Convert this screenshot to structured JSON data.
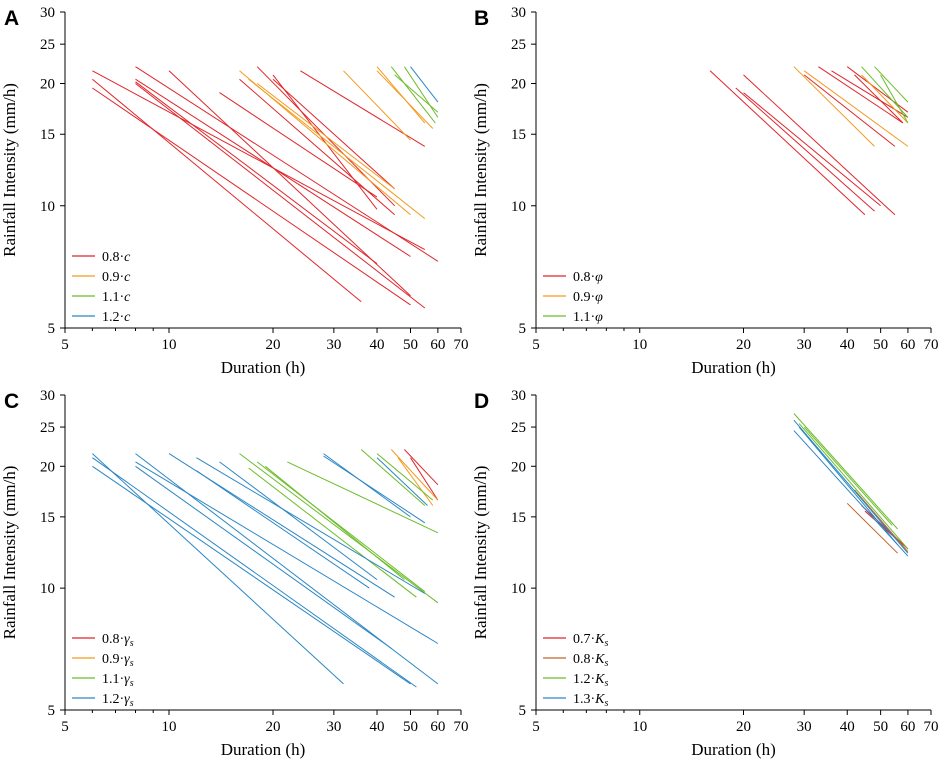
{
  "chart_data": [
    {
      "panel": "A",
      "type": "line",
      "xlabel": "Duration (h)",
      "ylabel": "Rainfall Intensity (mm/h)",
      "xscale": "log",
      "yscale": "log",
      "xlim": [
        5,
        70
      ],
      "ylim": [
        5,
        30
      ],
      "xticks": [
        5,
        10,
        20,
        30,
        40,
        50,
        60,
        70
      ],
      "yticks": [
        5,
        10,
        15,
        20,
        25,
        30
      ],
      "legend_position": "bottom-left",
      "legend": [
        {
          "label": "0.8·c",
          "base": "0.8·",
          "sym": "c",
          "sub": "",
          "color": "#e0262b"
        },
        {
          "label": "0.9·c",
          "base": "0.9·",
          "sym": "c",
          "sub": "",
          "color": "#f39a1e"
        },
        {
          "label": "1.1·c",
          "base": "1.1·",
          "sym": "c",
          "sub": "",
          "color": "#6cbd2b"
        },
        {
          "label": "1.2·c",
          "base": "1.2·",
          "sym": "c",
          "sub": "",
          "color": "#2b87c4"
        }
      ],
      "series": [
        {
          "name": "0.8·c",
          "color": "#e0262b",
          "segments": [
            [
              [
                6,
                21.5
              ],
              [
                55,
                7.8
              ]
            ],
            [
              [
                6,
                20.5
              ],
              [
                36,
                5.8
              ]
            ],
            [
              [
                6,
                19.5
              ],
              [
                50,
                5.7
              ]
            ],
            [
              [
                8,
                22
              ],
              [
                60,
                7.3
              ]
            ],
            [
              [
                8,
                20.5
              ],
              [
                50,
                7.5
              ]
            ],
            [
              [
                8,
                20
              ],
              [
                55,
                5.6
              ]
            ],
            [
              [
                8,
                20.2
              ],
              [
                40,
                7.2
              ]
            ],
            [
              [
                10,
                21.5
              ],
              [
                50,
                6.0
              ]
            ],
            [
              [
                14,
                19
              ],
              [
                40,
                10.5
              ]
            ],
            [
              [
                18,
                22
              ],
              [
                45,
                10
              ]
            ],
            [
              [
                20,
                21
              ],
              [
                40,
                9.8
              ]
            ],
            [
              [
                16,
                20.5
              ],
              [
                45,
                9.5
              ]
            ],
            [
              [
                24,
                21.5
              ],
              [
                55,
                14
              ]
            ],
            [
              [
                20,
                20.5
              ],
              [
                45,
                11
              ]
            ]
          ]
        },
        {
          "name": "0.9·c",
          "color": "#f39a1e",
          "segments": [
            [
              [
                16,
                21.5
              ],
              [
                50,
                9.5
              ]
            ],
            [
              [
                17,
                20.5
              ],
              [
                55,
                9.3
              ]
            ],
            [
              [
                18,
                20
              ],
              [
                45,
                11
              ]
            ],
            [
              [
                32,
                21.5
              ],
              [
                50,
                14.5
              ]
            ],
            [
              [
                40,
                22
              ],
              [
                55,
                16
              ]
            ],
            [
              [
                40,
                21.5
              ],
              [
                58,
                15.5
              ]
            ]
          ]
        },
        {
          "name": "1.1·c",
          "color": "#6cbd2b",
          "segments": [
            [
              [
                44,
                22
              ],
              [
                59,
                16
              ]
            ],
            [
              [
                45,
                21
              ],
              [
                60,
                17
              ]
            ],
            [
              [
                48,
                22
              ],
              [
                60,
                16.5
              ]
            ]
          ]
        },
        {
          "name": "1.2·c",
          "color": "#2b87c4",
          "segments": [
            [
              [
                50,
                22
              ],
              [
                60,
                18
              ]
            ]
          ]
        }
      ]
    },
    {
      "panel": "B",
      "type": "line",
      "xlabel": "Duration (h)",
      "ylabel": "Rainfall Intensity (mm/h)",
      "xscale": "log",
      "yscale": "log",
      "xlim": [
        5,
        70
      ],
      "ylim": [
        5,
        30
      ],
      "xticks": [
        5,
        10,
        20,
        30,
        40,
        50,
        60,
        70
      ],
      "yticks": [
        5,
        10,
        15,
        20,
        25,
        30
      ],
      "legend_position": "bottom-left",
      "legend": [
        {
          "label": "0.8·φ",
          "base": "0.8·",
          "sym": "φ",
          "sub": "",
          "color": "#e0262b"
        },
        {
          "label": "0.9·φ",
          "base": "0.9·",
          "sym": "φ",
          "sub": "",
          "color": "#f39a1e"
        },
        {
          "label": "1.1·φ",
          "base": "1.1·",
          "sym": "φ",
          "sub": "",
          "color": "#6cbd2b"
        }
      ],
      "series": [
        {
          "name": "0.8·φ",
          "color": "#e0262b",
          "segments": [
            [
              [
                16,
                21.5
              ],
              [
                45,
                9.5
              ]
            ],
            [
              [
                19,
                19.5
              ],
              [
                48,
                9.7
              ]
            ],
            [
              [
                20,
                21
              ],
              [
                55,
                9.5
              ]
            ],
            [
              [
                20,
                19
              ],
              [
                50,
                10
              ]
            ],
            [
              [
                30,
                21
              ],
              [
                55,
                14
              ]
            ],
            [
              [
                33,
                22
              ],
              [
                58,
                16
              ]
            ],
            [
              [
                36,
                21.5
              ],
              [
                60,
                16.5
              ]
            ],
            [
              [
                40,
                22
              ],
              [
                60,
                17
              ]
            ],
            [
              [
                42,
                21
              ],
              [
                58,
                16
              ]
            ]
          ]
        },
        {
          "name": "0.9·φ",
          "color": "#f39a1e",
          "segments": [
            [
              [
                28,
                22
              ],
              [
                48,
                14
              ]
            ],
            [
              [
                30,
                21.5
              ],
              [
                60,
                14
              ]
            ],
            [
              [
                44,
                21
              ],
              [
                60,
                16
              ]
            ]
          ]
        },
        {
          "name": "1.1·φ",
          "color": "#6cbd2b",
          "segments": [
            [
              [
                44,
                22
              ],
              [
                60,
                16.5
              ]
            ],
            [
              [
                48,
                22
              ],
              [
                60,
                18
              ]
            ],
            [
              [
                50,
                21
              ],
              [
                60,
                16
              ]
            ]
          ]
        }
      ]
    },
    {
      "panel": "C",
      "type": "line",
      "xlabel": "Duration (h)",
      "ylabel": "Rainfall Intensity (mm/h)",
      "xscale": "log",
      "yscale": "log",
      "xlim": [
        5,
        70
      ],
      "ylim": [
        5,
        30
      ],
      "xticks": [
        5,
        10,
        20,
        30,
        40,
        50,
        60,
        70
      ],
      "yticks": [
        5,
        10,
        15,
        20,
        25,
        30
      ],
      "legend_position": "bottom-left",
      "legend": [
        {
          "label": "0.8·γs",
          "base": "0.8·",
          "sym": "γ",
          "sub": "s",
          "color": "#e0262b"
        },
        {
          "label": "0.9·γs",
          "base": "0.9·",
          "sym": "γ",
          "sub": "s",
          "color": "#f39a1e"
        },
        {
          "label": "1.1·γs",
          "base": "1.1·",
          "sym": "γ",
          "sub": "s",
          "color": "#6cbd2b"
        },
        {
          "label": "1.2·γs",
          "base": "1.2·",
          "sym": "γ",
          "sub": "s",
          "color": "#2b87c4"
        }
      ],
      "series": [
        {
          "name": "0.8·γs",
          "color": "#e0262b",
          "segments": [
            [
              [
                48,
                22
              ],
              [
                60,
                18
              ]
            ],
            [
              [
                50,
                21
              ],
              [
                60,
                16.5
              ]
            ]
          ]
        },
        {
          "name": "0.9·γs",
          "color": "#f39a1e",
          "segments": [
            [
              [
                44,
                22
              ],
              [
                60,
                16.5
              ]
            ],
            [
              [
                46,
                21
              ],
              [
                58,
                16
              ]
            ]
          ]
        },
        {
          "name": "1.1·γs",
          "color": "#6cbd2b",
          "segments": [
            [
              [
                16,
                21.5
              ],
              [
                60,
                9.2
              ]
            ],
            [
              [
                18,
                20.5
              ],
              [
                55,
                9.8
              ]
            ],
            [
              [
                19,
                20
              ],
              [
                48,
                10.5
              ]
            ],
            [
              [
                22,
                20.5
              ],
              [
                60,
                13.7
              ]
            ],
            [
              [
                17,
                19.8
              ],
              [
                52,
                9.5
              ]
            ],
            [
              [
                36,
                22
              ],
              [
                55,
                16
              ]
            ],
            [
              [
                40,
                21.5
              ],
              [
                58,
                16.5
              ]
            ]
          ]
        },
        {
          "name": "1.2·γs",
          "color": "#2b87c4",
          "segments": [
            [
              [
                6,
                21.5
              ],
              [
                32,
                5.8
              ]
            ],
            [
              [
                6,
                20
              ],
              [
                50,
                5.8
              ]
            ],
            [
              [
                6,
                21
              ],
              [
                52,
                5.7
              ]
            ],
            [
              [
                8,
                21.5
              ],
              [
                60,
                5.8
              ]
            ],
            [
              [
                8,
                20.5
              ],
              [
                60,
                7.3
              ]
            ],
            [
              [
                8,
                20
              ],
              [
                44,
                7.1
              ]
            ],
            [
              [
                10,
                21.5
              ],
              [
                45,
                9.5
              ]
            ],
            [
              [
                12,
                21
              ],
              [
                55,
                9.7
              ]
            ],
            [
              [
                14,
                20.5
              ],
              [
                40,
                10.5
              ]
            ],
            [
              [
                12,
                19.5
              ],
              [
                38,
                10
              ]
            ],
            [
              [
                28,
                21.5
              ],
              [
                50,
                15
              ]
            ],
            [
              [
                28,
                21.2
              ],
              [
                55,
                14.5
              ]
            ],
            [
              [
                40,
                21
              ],
              [
                56,
                16
              ]
            ]
          ]
        }
      ]
    },
    {
      "panel": "D",
      "type": "line",
      "xlabel": "Duration (h)",
      "ylabel": "Rainfall Intensity (mm/h)",
      "xscale": "log",
      "yscale": "log",
      "xlim": [
        5,
        70
      ],
      "ylim": [
        5,
        30
      ],
      "xticks": [
        5,
        10,
        20,
        30,
        40,
        50,
        60,
        70
      ],
      "yticks": [
        5,
        10,
        15,
        20,
        25,
        30
      ],
      "legend_position": "bottom-left",
      "legend": [
        {
          "label": "0.7·Ks",
          "base": "0.7·",
          "sym": "K",
          "sub": "s",
          "color": "#e0262b"
        },
        {
          "label": "0.8·Ks",
          "base": "0.8·",
          "sym": "K",
          "sub": "s",
          "color": "#c0662a"
        },
        {
          "label": "1.2·Ks",
          "base": "1.2·",
          "sym": "K",
          "sub": "s",
          "color": "#6cbd2b"
        },
        {
          "label": "1.3·Ks",
          "base": "1.3·",
          "sym": "K",
          "sub": "s",
          "color": "#2b87c4"
        }
      ],
      "series": [
        {
          "name": "0.7·Ks",
          "color": "#e0262b",
          "segments": [
            [
              [
                44,
                16
              ],
              [
                60,
                12.5
              ]
            ],
            [
              [
                45,
                15.5
              ],
              [
                58,
                12.8
              ]
            ]
          ]
        },
        {
          "name": "0.8·Ks",
          "color": "#c0662a",
          "segments": [
            [
              [
                40,
                16.2
              ],
              [
                56,
                12.2
              ]
            ],
            [
              [
                42,
                17.5
              ],
              [
                60,
                12.3
              ]
            ]
          ]
        },
        {
          "name": "1.2·Ks",
          "color": "#6cbd2b",
          "segments": [
            [
              [
                28,
                27
              ],
              [
                56,
                14
              ]
            ],
            [
              [
                29,
                25.5
              ],
              [
                60,
                12.5
              ]
            ],
            [
              [
                30,
                25
              ],
              [
                54,
                14.3
              ]
            ]
          ]
        },
        {
          "name": "1.3·Ks",
          "color": "#2b87c4",
          "segments": [
            [
              [
                28,
                26
              ],
              [
                60,
                12.2
              ]
            ],
            [
              [
                28,
                24.5
              ],
              [
                60,
                12
              ]
            ],
            [
              [
                29,
                25
              ],
              [
                56,
                12.8
              ]
            ]
          ]
        }
      ]
    }
  ]
}
